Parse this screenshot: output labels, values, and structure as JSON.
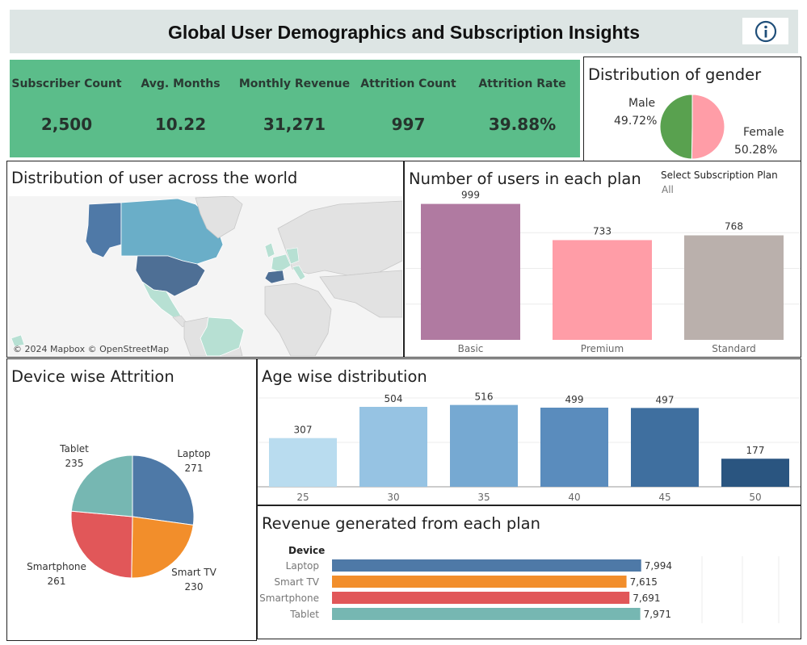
{
  "title": "Global User Demographics and Subscription Insights",
  "info_icon": "info-icon",
  "kpis": [
    {
      "label": "Subscriber Count",
      "value": "2,500"
    },
    {
      "label": "Avg. Months",
      "value": "10.22"
    },
    {
      "label": "Monthly Revenue",
      "value": "31,271"
    },
    {
      "label": "Attrition Count",
      "value": "997"
    },
    {
      "label": "Attrition Rate",
      "value": "39.88%"
    }
  ],
  "colors": {
    "kpi_bg": "#5bbd8a",
    "title_bg": "#dde5e4",
    "male": "#59a14f",
    "female": "#ff9da7",
    "basic": "#b07aa1",
    "premium": "#ff9da7",
    "standard": "#bab0ac",
    "laptop": "#4e79a7",
    "smart_tv": "#f28e2b",
    "smartphone": "#e15759",
    "tablet": "#76b7b2"
  },
  "gender": {
    "title": "Distribution of gender",
    "male_label": "Male",
    "male_pct": "49.72%",
    "female_label": "Female",
    "female_pct": "50.28%"
  },
  "world_map": {
    "title": "Distribution of user across the world",
    "attribution": "© 2024 Mapbox © OpenStreetMap"
  },
  "plan_filter": {
    "label": "Select Subscription Plan",
    "value": "All"
  },
  "device_attrition": {
    "title": "Device wise Attrition",
    "labels": [
      {
        "name": "Tablet",
        "value": "235"
      },
      {
        "name": "Laptop",
        "value": "271"
      },
      {
        "name": "Smartphone",
        "value": "261"
      },
      {
        "name": "Smart TV",
        "value": "230"
      }
    ]
  },
  "age_chart": {
    "title": "Age wise distribution"
  },
  "revenue_chart": {
    "title": "Revenue generated from each plan",
    "row_header": "Device"
  },
  "chart_data": [
    {
      "type": "pie",
      "title": "Distribution of gender",
      "categories": [
        "Male",
        "Female"
      ],
      "values": [
        49.72,
        50.28
      ]
    },
    {
      "type": "bar",
      "title": "Number of users in each plan",
      "categories": [
        "Basic",
        "Premium",
        "Standard"
      ],
      "values": [
        999,
        733,
        768
      ],
      "ylim": [
        0,
        1050
      ]
    },
    {
      "type": "pie",
      "title": "Device wise Attrition",
      "categories": [
        "Laptop",
        "Smart TV",
        "Smartphone",
        "Tablet"
      ],
      "values": [
        271,
        230,
        261,
        235
      ]
    },
    {
      "type": "bar",
      "title": "Age wise distribution",
      "categories": [
        "25",
        "30",
        "35",
        "40",
        "45",
        "50"
      ],
      "values": [
        307,
        504,
        516,
        499,
        497,
        177
      ],
      "ylim": [
        0,
        560
      ]
    },
    {
      "type": "bar",
      "orientation": "horizontal",
      "title": "Revenue generated from each plan",
      "categories": [
        "Laptop",
        "Smart TV",
        "Smartphone",
        "Tablet"
      ],
      "values": [
        7994,
        7615,
        7691,
        7971
      ],
      "value_labels": [
        "7,994",
        "7,615",
        "7,691",
        "7,971"
      ],
      "xlim": [
        0,
        8000
      ]
    }
  ]
}
